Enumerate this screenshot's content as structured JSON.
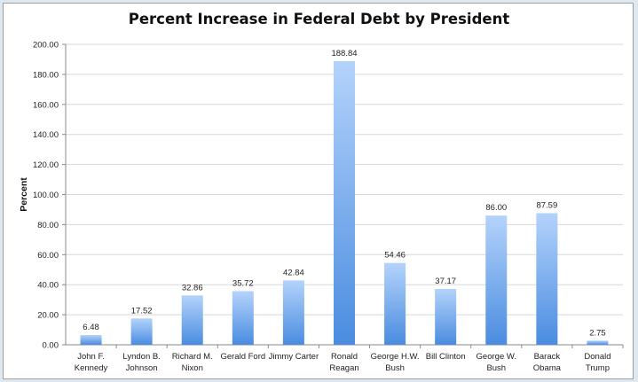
{
  "chart_data": {
    "type": "bar",
    "title": "Percent Increase in Federal Debt by President",
    "xlabel": "",
    "ylabel": "Percent",
    "ylim": [
      0,
      200
    ],
    "yticks": [
      "0.00",
      "20.00",
      "40.00",
      "60.00",
      "80.00",
      "100.00",
      "120.00",
      "140.00",
      "160.00",
      "180.00",
      "200.00"
    ],
    "grid": true,
    "categories": [
      [
        "John F.",
        "Kennedy"
      ],
      [
        "Lyndon B.",
        "Johnson"
      ],
      [
        "Richard M.",
        "Nixon"
      ],
      [
        "Gerald Ford"
      ],
      [
        "Jimmy Carter"
      ],
      [
        "Ronald",
        "Reagan"
      ],
      [
        "George H.W.",
        "Bush"
      ],
      [
        "Bill Clinton"
      ],
      [
        "George W.",
        "Bush"
      ],
      [
        "Barack",
        "Obama"
      ],
      [
        "Donald",
        "Trump"
      ]
    ],
    "values": [
      6.48,
      17.52,
      32.86,
      35.72,
      42.84,
      188.84,
      54.46,
      37.17,
      86.0,
      87.59,
      2.75
    ],
    "value_labels": [
      "6.48",
      "17.52",
      "32.86",
      "35.72",
      "42.84",
      "188.84",
      "54.46",
      "37.17",
      "86.00",
      "87.59",
      "2.75"
    ],
    "colors": {
      "bar_top": "#b4d3fb",
      "bar_bottom": "#4a8ce0",
      "grid": "#d8d8d8",
      "axis": "#8a8a8a"
    }
  }
}
